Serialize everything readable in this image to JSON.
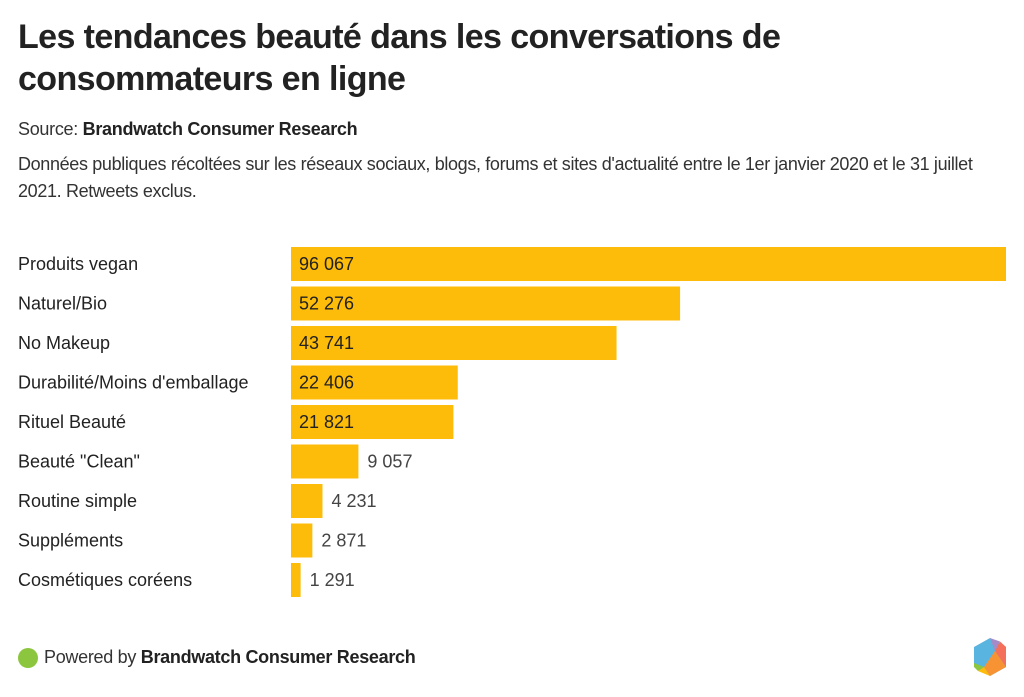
{
  "header": {
    "title": "Les tendances beauté dans les conversations de consommateurs en ligne",
    "source_prefix": "Source: ",
    "source_name": "Brandwatch Consumer Research",
    "description": "Données publiques récoltées sur les réseaux sociaux, blogs, forums et sites d'actualité entre le 1er janvier 2020 et le 31 juillet 2021. Retweets exclus."
  },
  "footer": {
    "powered_prefix": "Powered by ",
    "powered_name": "Brandwatch Consumer Research",
    "dot_icon": "green-circle-icon",
    "logo_icon": "brandwatch-hexagon-logo-icon",
    "dot_color": "#8cc63f"
  },
  "chart_data": {
    "type": "bar",
    "orientation": "horizontal",
    "title": "Les tendances beauté dans les conversations de consommateurs en ligne",
    "xlabel": "",
    "ylabel": "",
    "bar_color": "#fdbb0a",
    "categories": [
      "Produits vegan",
      "Naturel/Bio",
      "No Makeup",
      "Durabilité/Moins d'emballage",
      "Rituel Beauté",
      "Beauté \"Clean\"",
      "Routine simple",
      "Suppléments",
      "Cosmétiques coréens"
    ],
    "values": [
      96067,
      52276,
      43741,
      22406,
      21821,
      9057,
      4231,
      2871,
      1291
    ],
    "value_labels": [
      "96 067",
      "52 276",
      "43 741",
      "22 406",
      "21 821",
      "9 057",
      "4 231",
      "2 871",
      "1 291"
    ],
    "xlim": [
      0,
      96067
    ],
    "grid": false,
    "legend": "none"
  }
}
